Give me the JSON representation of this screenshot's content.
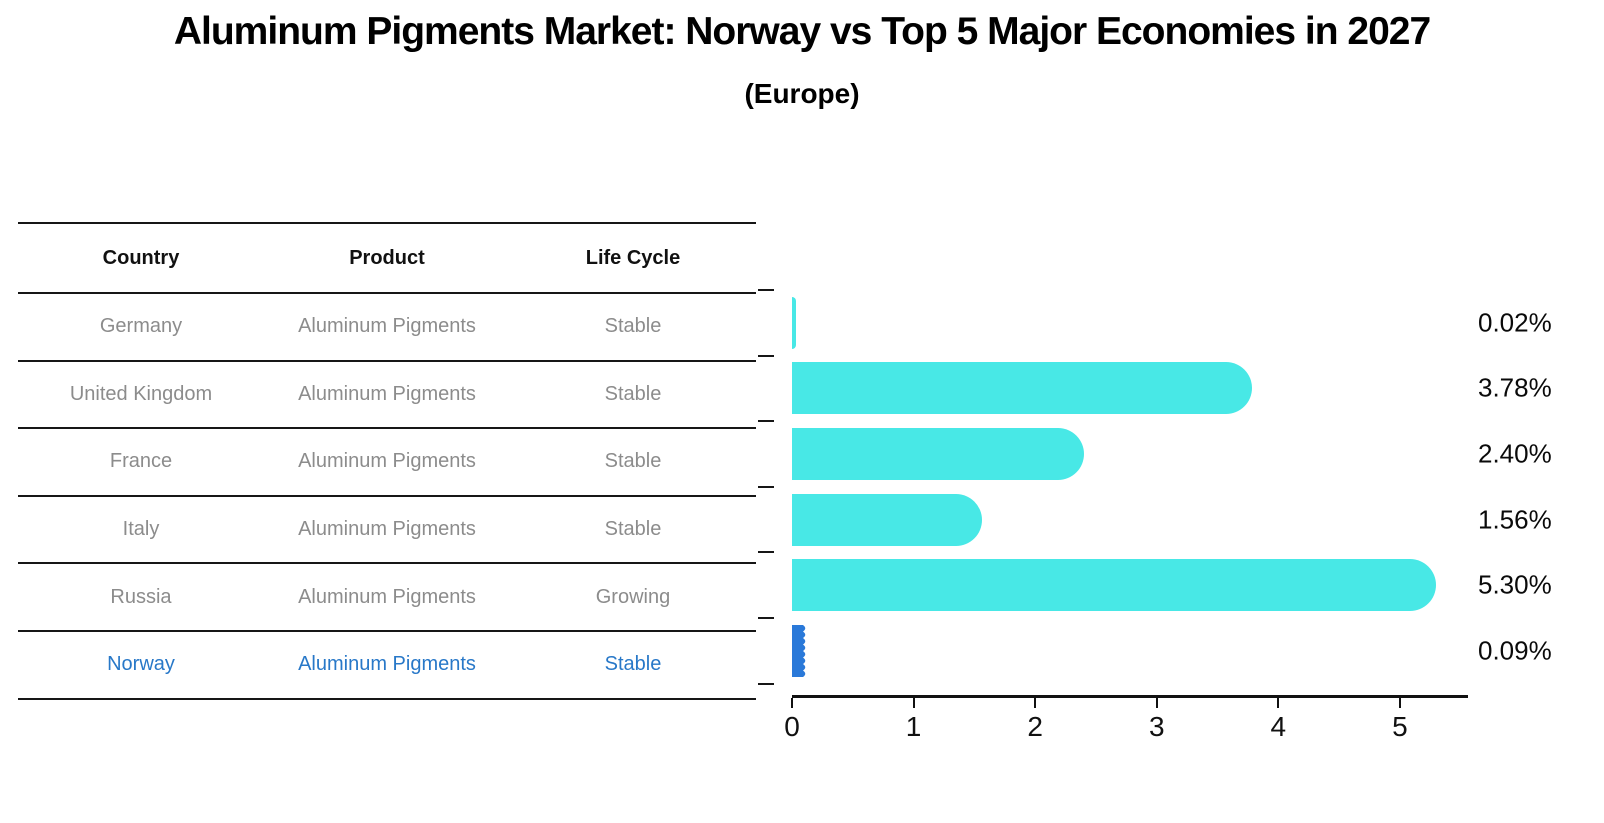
{
  "title": "Aluminum Pigments Market: Norway vs Top 5 Major Economies in 2027",
  "subtitle": "(Europe)",
  "table": {
    "headers": [
      "Country",
      "Product",
      "Life Cycle"
    ],
    "rows": [
      {
        "country": "Germany",
        "product": "Aluminum Pigments",
        "life_cycle": "Stable",
        "highlight": false
      },
      {
        "country": "United Kingdom",
        "product": "Aluminum Pigments",
        "life_cycle": "Stable",
        "highlight": false
      },
      {
        "country": "France",
        "product": "Aluminum Pigments",
        "life_cycle": "Stable",
        "highlight": false
      },
      {
        "country": "Italy",
        "product": "Aluminum Pigments",
        "life_cycle": "Stable",
        "highlight": false
      },
      {
        "country": "Russia",
        "product": "Aluminum Pigments",
        "life_cycle": "Growing",
        "highlight": false
      },
      {
        "country": "Norway",
        "product": "Aluminum Pigments",
        "life_cycle": "Stable",
        "highlight": true
      }
    ]
  },
  "chart_data": {
    "type": "bar",
    "orientation": "horizontal",
    "title": "Aluminum Pigments Market: Norway vs Top 5 Major Economies in 2027",
    "subtitle": "(Europe)",
    "categories": [
      "Germany",
      "United Kingdom",
      "France",
      "Italy",
      "Russia",
      "Norway"
    ],
    "values": [
      0.02,
      3.78,
      2.4,
      1.56,
      5.3,
      0.09
    ],
    "value_labels": [
      "0.02%",
      "3.78%",
      "2.40%",
      "1.56%",
      "5.30%",
      "0.09%"
    ],
    "x_ticks": [
      "0",
      "1",
      "2",
      "3",
      "4",
      "5"
    ],
    "xlim": [
      0,
      5.56
    ],
    "grid": false,
    "legend": false,
    "bar_color": "#48e8e6",
    "highlight_color": "#2a79d9",
    "highlight_index": 5
  },
  "colors": {
    "line": "#161616",
    "row_text": "#8c8c8c",
    "highlight_text": "#2878c8"
  }
}
